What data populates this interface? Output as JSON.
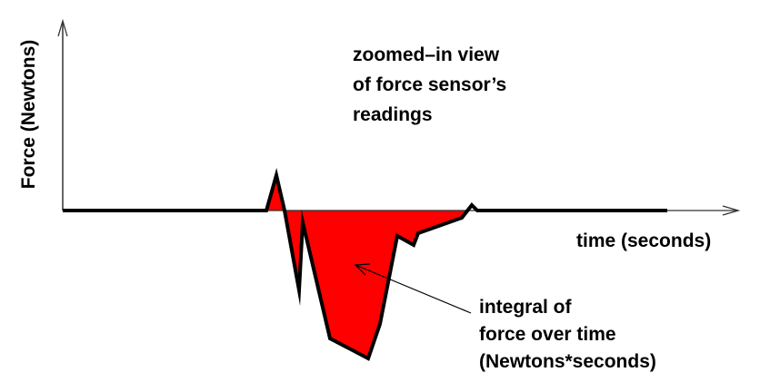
{
  "y_axis_label": "Force (Newtons)",
  "x_axis_label": "time (seconds)",
  "caption_lines": [
    "zoomed–in view",
    "of force sensor’s",
    "readings"
  ],
  "annotation_lines": [
    "integral of",
    "force over time",
    "(Newtons*seconds)"
  ],
  "colors": {
    "area_fill": "#ff0000",
    "curve": "#000000"
  }
}
